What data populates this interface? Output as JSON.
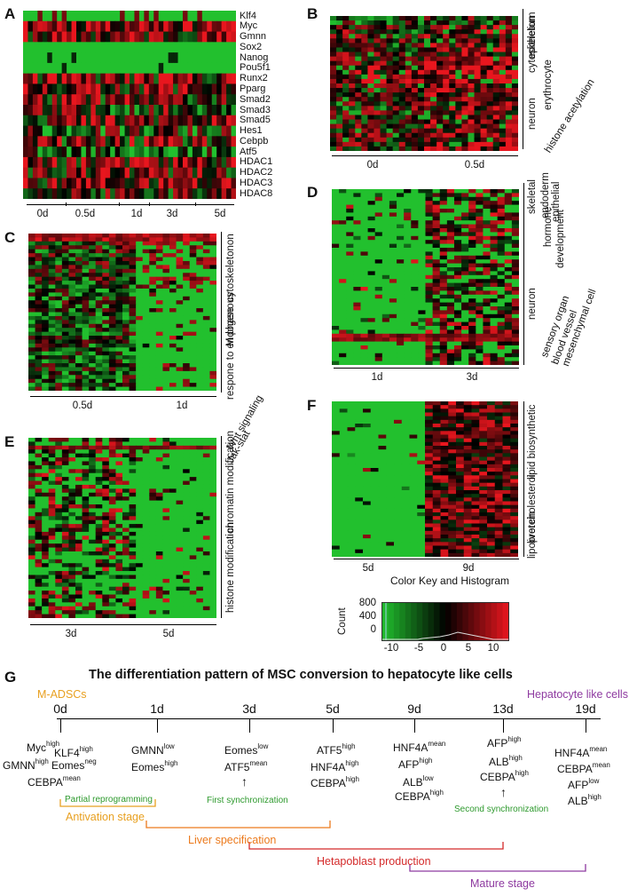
{
  "panels": {
    "A": {
      "label": "A",
      "genes": [
        "Klf4",
        "Myc",
        "Gmnn",
        "Sox2",
        "Nanog",
        "Pou5f1",
        "Runx2",
        "Pparg",
        "Smad2",
        "Smad3",
        "Smad5",
        "Hes1",
        "Cebpb",
        "Atf5",
        "HDAC1",
        "HDAC2",
        "HDAC3",
        "HDAC8"
      ],
      "timepoints": [
        "0d",
        "0.5d",
        "1d",
        "3d",
        "5d"
      ]
    },
    "B": {
      "label": "B",
      "categories": [
        "epithelium",
        "cytoskeleton",
        "erythrocyte",
        "neuron",
        "histone acetylation"
      ],
      "timepoints": [
        "0d",
        "0.5d"
      ]
    },
    "C": {
      "label": "C",
      "categories": [
        "cytoskeletonon",
        "M phase",
        "respone to endogenous"
      ],
      "timepoints": [
        "0.5d",
        "1d"
      ]
    },
    "D": {
      "label": "D",
      "categories": [
        "skeletal",
        "endoderm",
        "epithelial",
        "hormone",
        "development",
        "neuron",
        "sensory organ",
        "blood vessel",
        "mesenchymal cell"
      ],
      "timepoints": [
        "1d",
        "3d"
      ]
    },
    "E": {
      "label": "E",
      "categories": [
        "Wnt signaling",
        "Jak-stat",
        "chromatin modification",
        "histone modification"
      ],
      "timepoints": [
        "3d",
        "5d"
      ]
    },
    "F": {
      "label": "F",
      "categories": [
        "lipid biosynthetic",
        "cholesterol",
        "liver",
        "lipoprotein"
      ],
      "timepoints": [
        "5d",
        "9d"
      ]
    }
  },
  "colorkey": {
    "title": "Color Key and Histogram",
    "ylabel": "Count",
    "yticks": [
      "800",
      "400",
      "0"
    ],
    "xticks": [
      "-10",
      "-5",
      "0",
      "5",
      "10"
    ],
    "colors": {
      "low": "#22c02e",
      "mid": "#000000",
      "high": "#e8161e"
    }
  },
  "panelG": {
    "label": "G",
    "title": "The differentiation pattern of MSC conversion to hepatocyte like cells",
    "start_label": "M-ADSCs",
    "end_label": "Hepatocyte like cells",
    "timepoints": [
      "0d",
      "1d",
      "3d",
      "5d",
      "9d",
      "13d",
      "19d"
    ],
    "markers": {
      "t0": [
        {
          "gene": "Myc",
          "level": "high"
        },
        {
          "gene": "GMNN",
          "level": "high"
        },
        {
          "gene": "KLF4",
          "level": "high"
        },
        {
          "gene": "Eomes",
          "level": "neg"
        },
        {
          "gene": "CEBPA",
          "level": "mean"
        }
      ],
      "t1": [
        {
          "gene": "GMNN",
          "level": "low"
        },
        {
          "gene": "Eomes",
          "level": "high"
        }
      ],
      "t3": [
        {
          "gene": "Eomes",
          "level": "low"
        },
        {
          "gene": "ATF5",
          "level": "mean"
        }
      ],
      "t5": [
        {
          "gene": "ATF5",
          "level": "high"
        },
        {
          "gene": "HNF4A",
          "level": "high"
        },
        {
          "gene": "CEBPA",
          "level": "high"
        }
      ],
      "t9": [
        {
          "gene": "HNF4A",
          "level": "mean"
        },
        {
          "gene": "AFP",
          "level": "high"
        },
        {
          "gene": "ALB",
          "level": "low"
        },
        {
          "gene": "CEBPA",
          "level": "high"
        }
      ],
      "t13": [
        {
          "gene": "AFP",
          "level": "high"
        },
        {
          "gene": "ALB",
          "level": "high"
        },
        {
          "gene": "CEBPA",
          "level": "high"
        }
      ],
      "t19": [
        {
          "gene": "HNF4A",
          "level": "mean"
        },
        {
          "gene": "CEBPA",
          "level": "mean"
        },
        {
          "gene": "AFP",
          "level": "low"
        },
        {
          "gene": "ALB",
          "level": "high"
        }
      ]
    },
    "notes": [
      "Partial reprogramming",
      "First synchronization",
      "Second synchronization"
    ],
    "stages": [
      "Antivation stage",
      "Liver specification",
      "Hetapoblast  production",
      "Mature stage"
    ],
    "colors": {
      "orange": "#e8a020",
      "orange2": "#ec7a1c",
      "red": "#d42a2a",
      "purple": "#8e3aa0",
      "green": "#2e9a2e"
    }
  }
}
